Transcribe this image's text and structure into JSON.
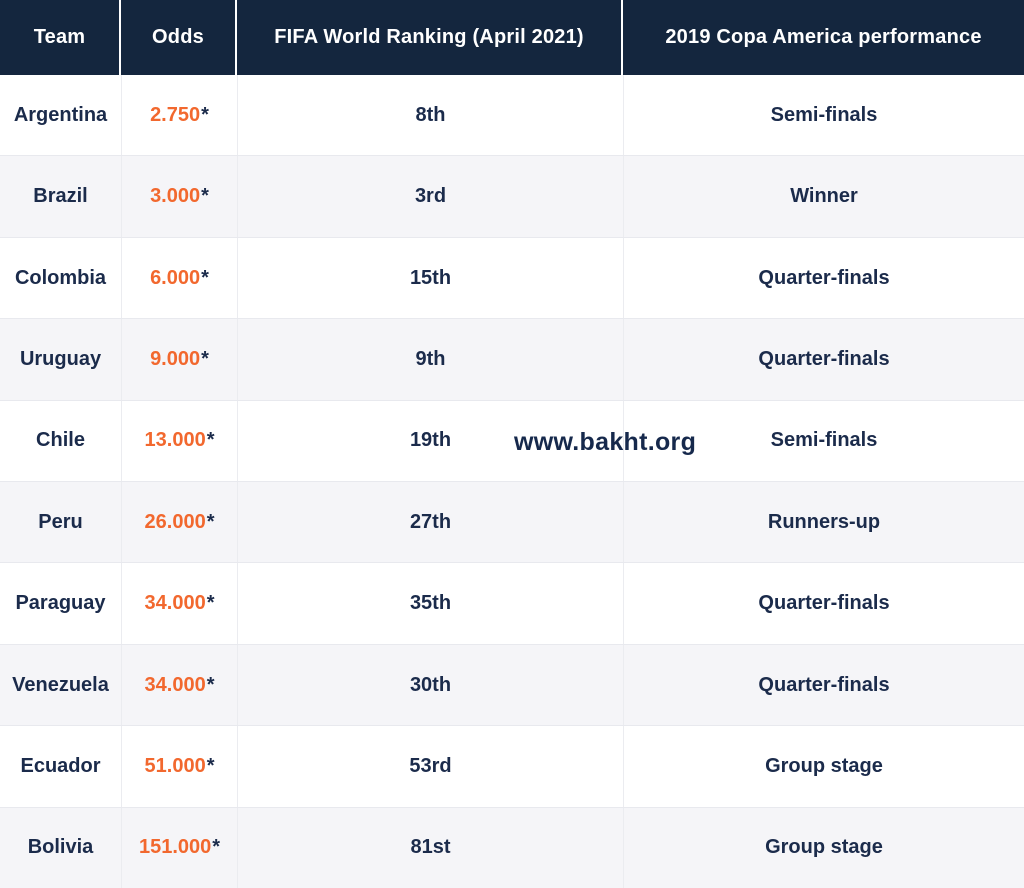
{
  "watermark": "www.bakht.org",
  "colors": {
    "header_background": "#14263e",
    "header_text": "#ffffff",
    "body_text": "#1b2b4b",
    "odds_accent": "#f2682e",
    "alt_row_background": "#f5f5f8",
    "divider": "#e8e9ee"
  },
  "table": {
    "headers": {
      "team": "Team",
      "odds": "Odds",
      "ranking": "FIFA World Ranking (April 2021)",
      "performance": "2019 Copa America performance"
    },
    "rows": [
      {
        "team": "Argentina",
        "odds": "2.750",
        "star": "*",
        "ranking": "8th",
        "performance": "Semi-finals"
      },
      {
        "team": "Brazil",
        "odds": "3.000",
        "star": "*",
        "ranking": "3rd",
        "performance": "Winner"
      },
      {
        "team": "Colombia",
        "odds": "6.000",
        "star": "*",
        "ranking": "15th",
        "performance": "Quarter-finals"
      },
      {
        "team": "Uruguay",
        "odds": "9.000",
        "star": "*",
        "ranking": "9th",
        "performance": "Quarter-finals"
      },
      {
        "team": "Chile",
        "odds": "13.000",
        "star": "*",
        "ranking": "19th",
        "performance": "Semi-finals"
      },
      {
        "team": "Peru",
        "odds": "26.000",
        "star": "*",
        "ranking": "27th",
        "performance": "Runners-up"
      },
      {
        "team": "Paraguay",
        "odds": "34.000",
        "star": "*",
        "ranking": "35th",
        "performance": "Quarter-finals"
      },
      {
        "team": "Venezuela",
        "odds": "34.000",
        "star": "*",
        "ranking": "30th",
        "performance": "Quarter-finals"
      },
      {
        "team": "Ecuador",
        "odds": "51.000",
        "star": "*",
        "ranking": "53rd",
        "performance": "Group stage"
      },
      {
        "team": "Bolivia",
        "odds": "151.000",
        "star": "*",
        "ranking": "81st",
        "performance": "Group stage"
      }
    ]
  },
  "chart_data": {
    "type": "table",
    "title": "",
    "columns": [
      "Team",
      "Odds",
      "FIFA World Ranking (April 2021)",
      "2019 Copa America performance"
    ],
    "rows": [
      [
        "Argentina",
        "2.750*",
        "8th",
        "Semi-finals"
      ],
      [
        "Brazil",
        "3.000*",
        "3rd",
        "Winner"
      ],
      [
        "Colombia",
        "6.000*",
        "15th",
        "Quarter-finals"
      ],
      [
        "Uruguay",
        "9.000*",
        "9th",
        "Quarter-finals"
      ],
      [
        "Chile",
        "13.000*",
        "19th",
        "Semi-finals"
      ],
      [
        "Peru",
        "26.000*",
        "27th",
        "Runners-up"
      ],
      [
        "Paraguay",
        "34.000*",
        "35th",
        "Quarter-finals"
      ],
      [
        "Venezuela",
        "34.000*",
        "30th",
        "Quarter-finals"
      ],
      [
        "Ecuador",
        "51.000*",
        "53rd",
        "Group stage"
      ],
      [
        "Bolivia",
        "151.000*",
        "81st",
        "Group stage"
      ]
    ]
  }
}
